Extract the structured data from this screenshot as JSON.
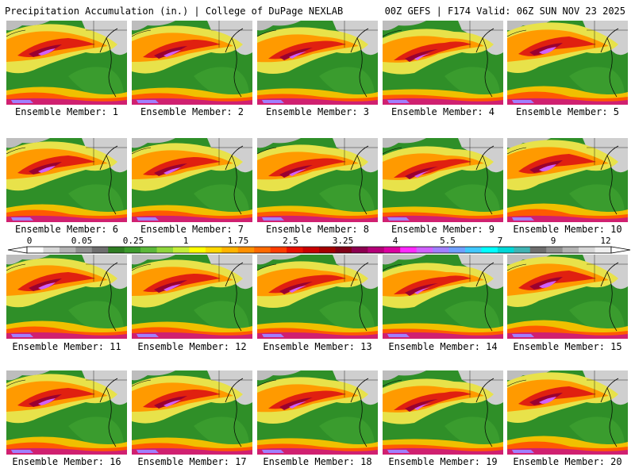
{
  "header": {
    "product": "Precipitation Accumulation (in.) | College of DuPage NEXLAB",
    "run_info": "00Z GEFS | F174 Valid: 06Z SUN NOV 23 2025"
  },
  "members": [
    {
      "label": "Ensemble Member: 1"
    },
    {
      "label": "Ensemble Member: 2"
    },
    {
      "label": "Ensemble Member: 3"
    },
    {
      "label": "Ensemble Member: 4"
    },
    {
      "label": "Ensemble Member: 5"
    },
    {
      "label": "Ensemble Member: 6"
    },
    {
      "label": "Ensemble Member: 7"
    },
    {
      "label": "Ensemble Member: 8"
    },
    {
      "label": "Ensemble Member: 9"
    },
    {
      "label": "Ensemble Member: 10"
    },
    {
      "label": "Ensemble Member: 11"
    },
    {
      "label": "Ensemble Member: 12"
    },
    {
      "label": "Ensemble Member: 13"
    },
    {
      "label": "Ensemble Member: 14"
    },
    {
      "label": "Ensemble Member: 15"
    },
    {
      "label": "Ensemble Member: 16"
    },
    {
      "label": "Ensemble Member: 17"
    },
    {
      "label": "Ensemble Member: 18"
    },
    {
      "label": "Ensemble Member: 19"
    },
    {
      "label": "Ensemble Member: 20"
    }
  ],
  "colorbar": {
    "labels": [
      "0",
      "0.05",
      "0.25",
      "1",
      "1.75",
      "2.5",
      "3.25",
      "4",
      "5.5",
      "7",
      "9",
      "12"
    ],
    "colors": [
      "#ffffff",
      "#d8d8d8",
      "#b4b4b4",
      "#909090",
      "#6e6e6e",
      "#2e7d22",
      "#3c9a2c",
      "#5cb83a",
      "#8fd63c",
      "#c4ee3a",
      "#ffff00",
      "#ffd800",
      "#ffb400",
      "#ff9000",
      "#ff6a00",
      "#ff3c00",
      "#e81000",
      "#c80000",
      "#a40000",
      "#800018",
      "#8c0050",
      "#b40078",
      "#dc00a0",
      "#ff28ff",
      "#d060ff",
      "#a080ff",
      "#6ea0ff",
      "#40c8ff",
      "#00ffff",
      "#00d8d8",
      "#40b4b4",
      "#6e6e6e",
      "#909090",
      "#b4b4b4",
      "#d8d8d8",
      "#f0f0f0"
    ]
  }
}
